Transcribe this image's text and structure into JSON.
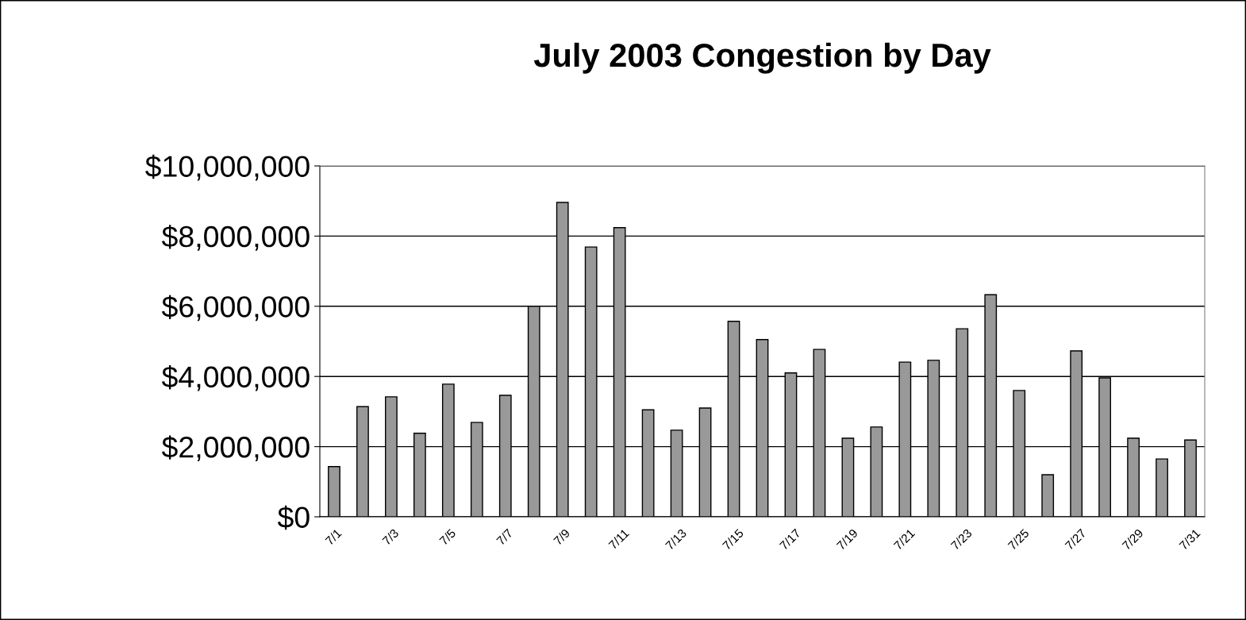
{
  "chart_data": {
    "type": "bar",
    "title": "July 2003 Congestion by Day",
    "categories": [
      "7/1",
      null,
      "7/3",
      null,
      "7/5",
      null,
      "7/7",
      null,
      "7/9",
      null,
      "7/11",
      null,
      "7/13",
      null,
      "7/15",
      null,
      "7/17",
      null,
      "7/19",
      null,
      "7/21",
      null,
      "7/23",
      null,
      "7/25",
      null,
      "7/27",
      null,
      "7/29",
      null,
      "7/31"
    ],
    "values": [
      1430000,
      3140000,
      3420000,
      2380000,
      3780000,
      2690000,
      3460000,
      6000000,
      8960000,
      7690000,
      8240000,
      3050000,
      2470000,
      3100000,
      5570000,
      5050000,
      4100000,
      4770000,
      2240000,
      2560000,
      4410000,
      4460000,
      5360000,
      6330000,
      3600000,
      1200000,
      4730000,
      3960000,
      2240000,
      1650000,
      2190000
    ],
    "color": "#999999",
    "ylim": [
      0,
      10000000
    ],
    "yticks": [
      {
        "value": 0,
        "label": "$0"
      },
      {
        "value": 2000000,
        "label": "$2,000,000"
      },
      {
        "value": 4000000,
        "label": "$4,000,000"
      },
      {
        "value": 6000000,
        "label": "$6,000,000"
      },
      {
        "value": 8000000,
        "label": "$8,000,000"
      },
      {
        "value": 10000000,
        "label": "$10,000,000"
      }
    ],
    "grid": "y",
    "legend": false
  }
}
